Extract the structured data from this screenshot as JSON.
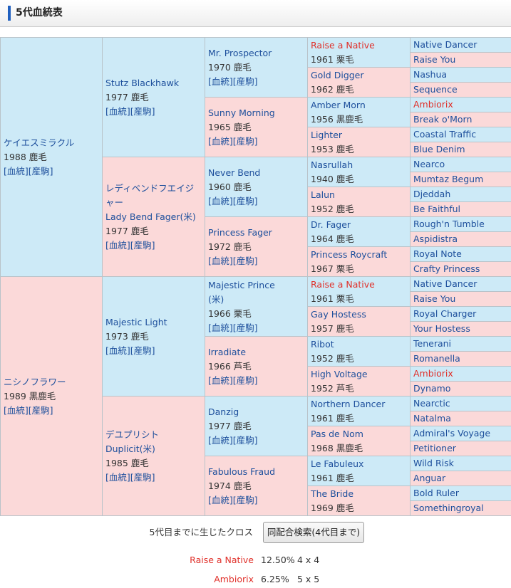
{
  "header": {
    "title": "5代血統表"
  },
  "link_labels": [
    "[血統]",
    "[産駒]"
  ],
  "pedigree": {
    "gen1": [
      {
        "name": [
          "ケイエスミラクル"
        ],
        "info": "1988 鹿毛"
      },
      {
        "name": [
          "ニシノフラワー"
        ],
        "info": "1989 黒鹿毛"
      }
    ],
    "gen2": [
      {
        "name": [
          "Stutz Blackhawk"
        ],
        "info": "1977 鹿毛"
      },
      {
        "name": [
          "レディベンドフエイジャー",
          "Lady Bend Fager(米)"
        ],
        "info": "1977 鹿毛"
      },
      {
        "name": [
          "Majestic Light"
        ],
        "info": "1973 鹿毛"
      },
      {
        "name": [
          "デユプリシト",
          "Duplicit(米)"
        ],
        "info": "1985 鹿毛"
      }
    ],
    "gen3": [
      {
        "name": [
          "Mr. Prospector"
        ],
        "info": "1970 鹿毛"
      },
      {
        "name": [
          "Sunny Morning"
        ],
        "info": "1965 鹿毛"
      },
      {
        "name": [
          "Never Bend"
        ],
        "info": "1960 鹿毛"
      },
      {
        "name": [
          "Princess Fager"
        ],
        "info": "1972 鹿毛"
      },
      {
        "name": [
          "Majestic Prince",
          "(米)"
        ],
        "info": "1966 栗毛"
      },
      {
        "name": [
          "Irradiate"
        ],
        "info": "1966 芦毛"
      },
      {
        "name": [
          "Danzig"
        ],
        "info": "1977 鹿毛"
      },
      {
        "name": [
          "Fabulous Fraud"
        ],
        "info": "1974 鹿毛"
      }
    ],
    "gen4": [
      {
        "name": [
          "Raise a Native"
        ],
        "info": "1961 栗毛",
        "cross": true
      },
      {
        "name": [
          "Gold Digger"
        ],
        "info": "1962 鹿毛"
      },
      {
        "name": [
          "Amber Morn"
        ],
        "info": "1956 黒鹿毛"
      },
      {
        "name": [
          "Lighter"
        ],
        "info": "1953 鹿毛"
      },
      {
        "name": [
          "Nasrullah"
        ],
        "info": "1940 鹿毛"
      },
      {
        "name": [
          "Lalun"
        ],
        "info": "1952 鹿毛"
      },
      {
        "name": [
          "Dr. Fager"
        ],
        "info": "1964 鹿毛"
      },
      {
        "name": [
          "Princess Roycraft"
        ],
        "info": "1967 栗毛"
      },
      {
        "name": [
          "Raise a Native"
        ],
        "info": "1961 栗毛",
        "cross": true
      },
      {
        "name": [
          "Gay Hostess"
        ],
        "info": "1957 鹿毛"
      },
      {
        "name": [
          "Ribot"
        ],
        "info": "1952 鹿毛"
      },
      {
        "name": [
          "High Voltage"
        ],
        "info": "1952 芦毛"
      },
      {
        "name": [
          "Northern Dancer"
        ],
        "info": "1961 鹿毛"
      },
      {
        "name": [
          "Pas de Nom"
        ],
        "info": "1968 黒鹿毛"
      },
      {
        "name": [
          "Le Fabuleux"
        ],
        "info": "1961 鹿毛"
      },
      {
        "name": [
          "The Bride"
        ],
        "info": "1969 鹿毛"
      }
    ],
    "gen5": [
      {
        "name": [
          "Native Dancer"
        ]
      },
      {
        "name": [
          "Raise You"
        ]
      },
      {
        "name": [
          "Nashua"
        ]
      },
      {
        "name": [
          "Sequence"
        ]
      },
      {
        "name": [
          "Ambiorix"
        ],
        "cross": true
      },
      {
        "name": [
          "Break o'Morn"
        ]
      },
      {
        "name": [
          "Coastal Traffic"
        ]
      },
      {
        "name": [
          "Blue Denim"
        ]
      },
      {
        "name": [
          "Nearco"
        ]
      },
      {
        "name": [
          "Mumtaz Begum"
        ]
      },
      {
        "name": [
          "Djeddah"
        ]
      },
      {
        "name": [
          "Be Faithful"
        ]
      },
      {
        "name": [
          "Rough'n Tumble"
        ]
      },
      {
        "name": [
          "Aspidistra"
        ]
      },
      {
        "name": [
          "Royal Note"
        ]
      },
      {
        "name": [
          "Crafty Princess"
        ]
      },
      {
        "name": [
          "Native Dancer"
        ]
      },
      {
        "name": [
          "Raise You"
        ]
      },
      {
        "name": [
          "Royal Charger"
        ]
      },
      {
        "name": [
          "Your Hostess"
        ]
      },
      {
        "name": [
          "Tenerani"
        ]
      },
      {
        "name": [
          "Romanella"
        ]
      },
      {
        "name": [
          "Ambiorix"
        ],
        "cross": true
      },
      {
        "name": [
          "Dynamo"
        ]
      },
      {
        "name": [
          "Nearctic"
        ]
      },
      {
        "name": [
          "Natalma"
        ]
      },
      {
        "name": [
          "Admiral's Voyage"
        ]
      },
      {
        "name": [
          "Petitioner"
        ]
      },
      {
        "name": [
          "Wild Risk"
        ]
      },
      {
        "name": [
          "Anguar"
        ]
      },
      {
        "name": [
          "Bold Ruler"
        ]
      },
      {
        "name": [
          "Somethingroyal"
        ]
      }
    ]
  },
  "crosses": {
    "label": "5代目までに生じたクロス",
    "button": "同配合検索(4代目まで)",
    "rows": [
      {
        "name": "Raise a Native",
        "percent": "12.50%",
        "pattern": "4 x 4"
      },
      {
        "name": "Ambiorix",
        "percent": "6.25%",
        "pattern": "5 x 5"
      }
    ]
  }
}
